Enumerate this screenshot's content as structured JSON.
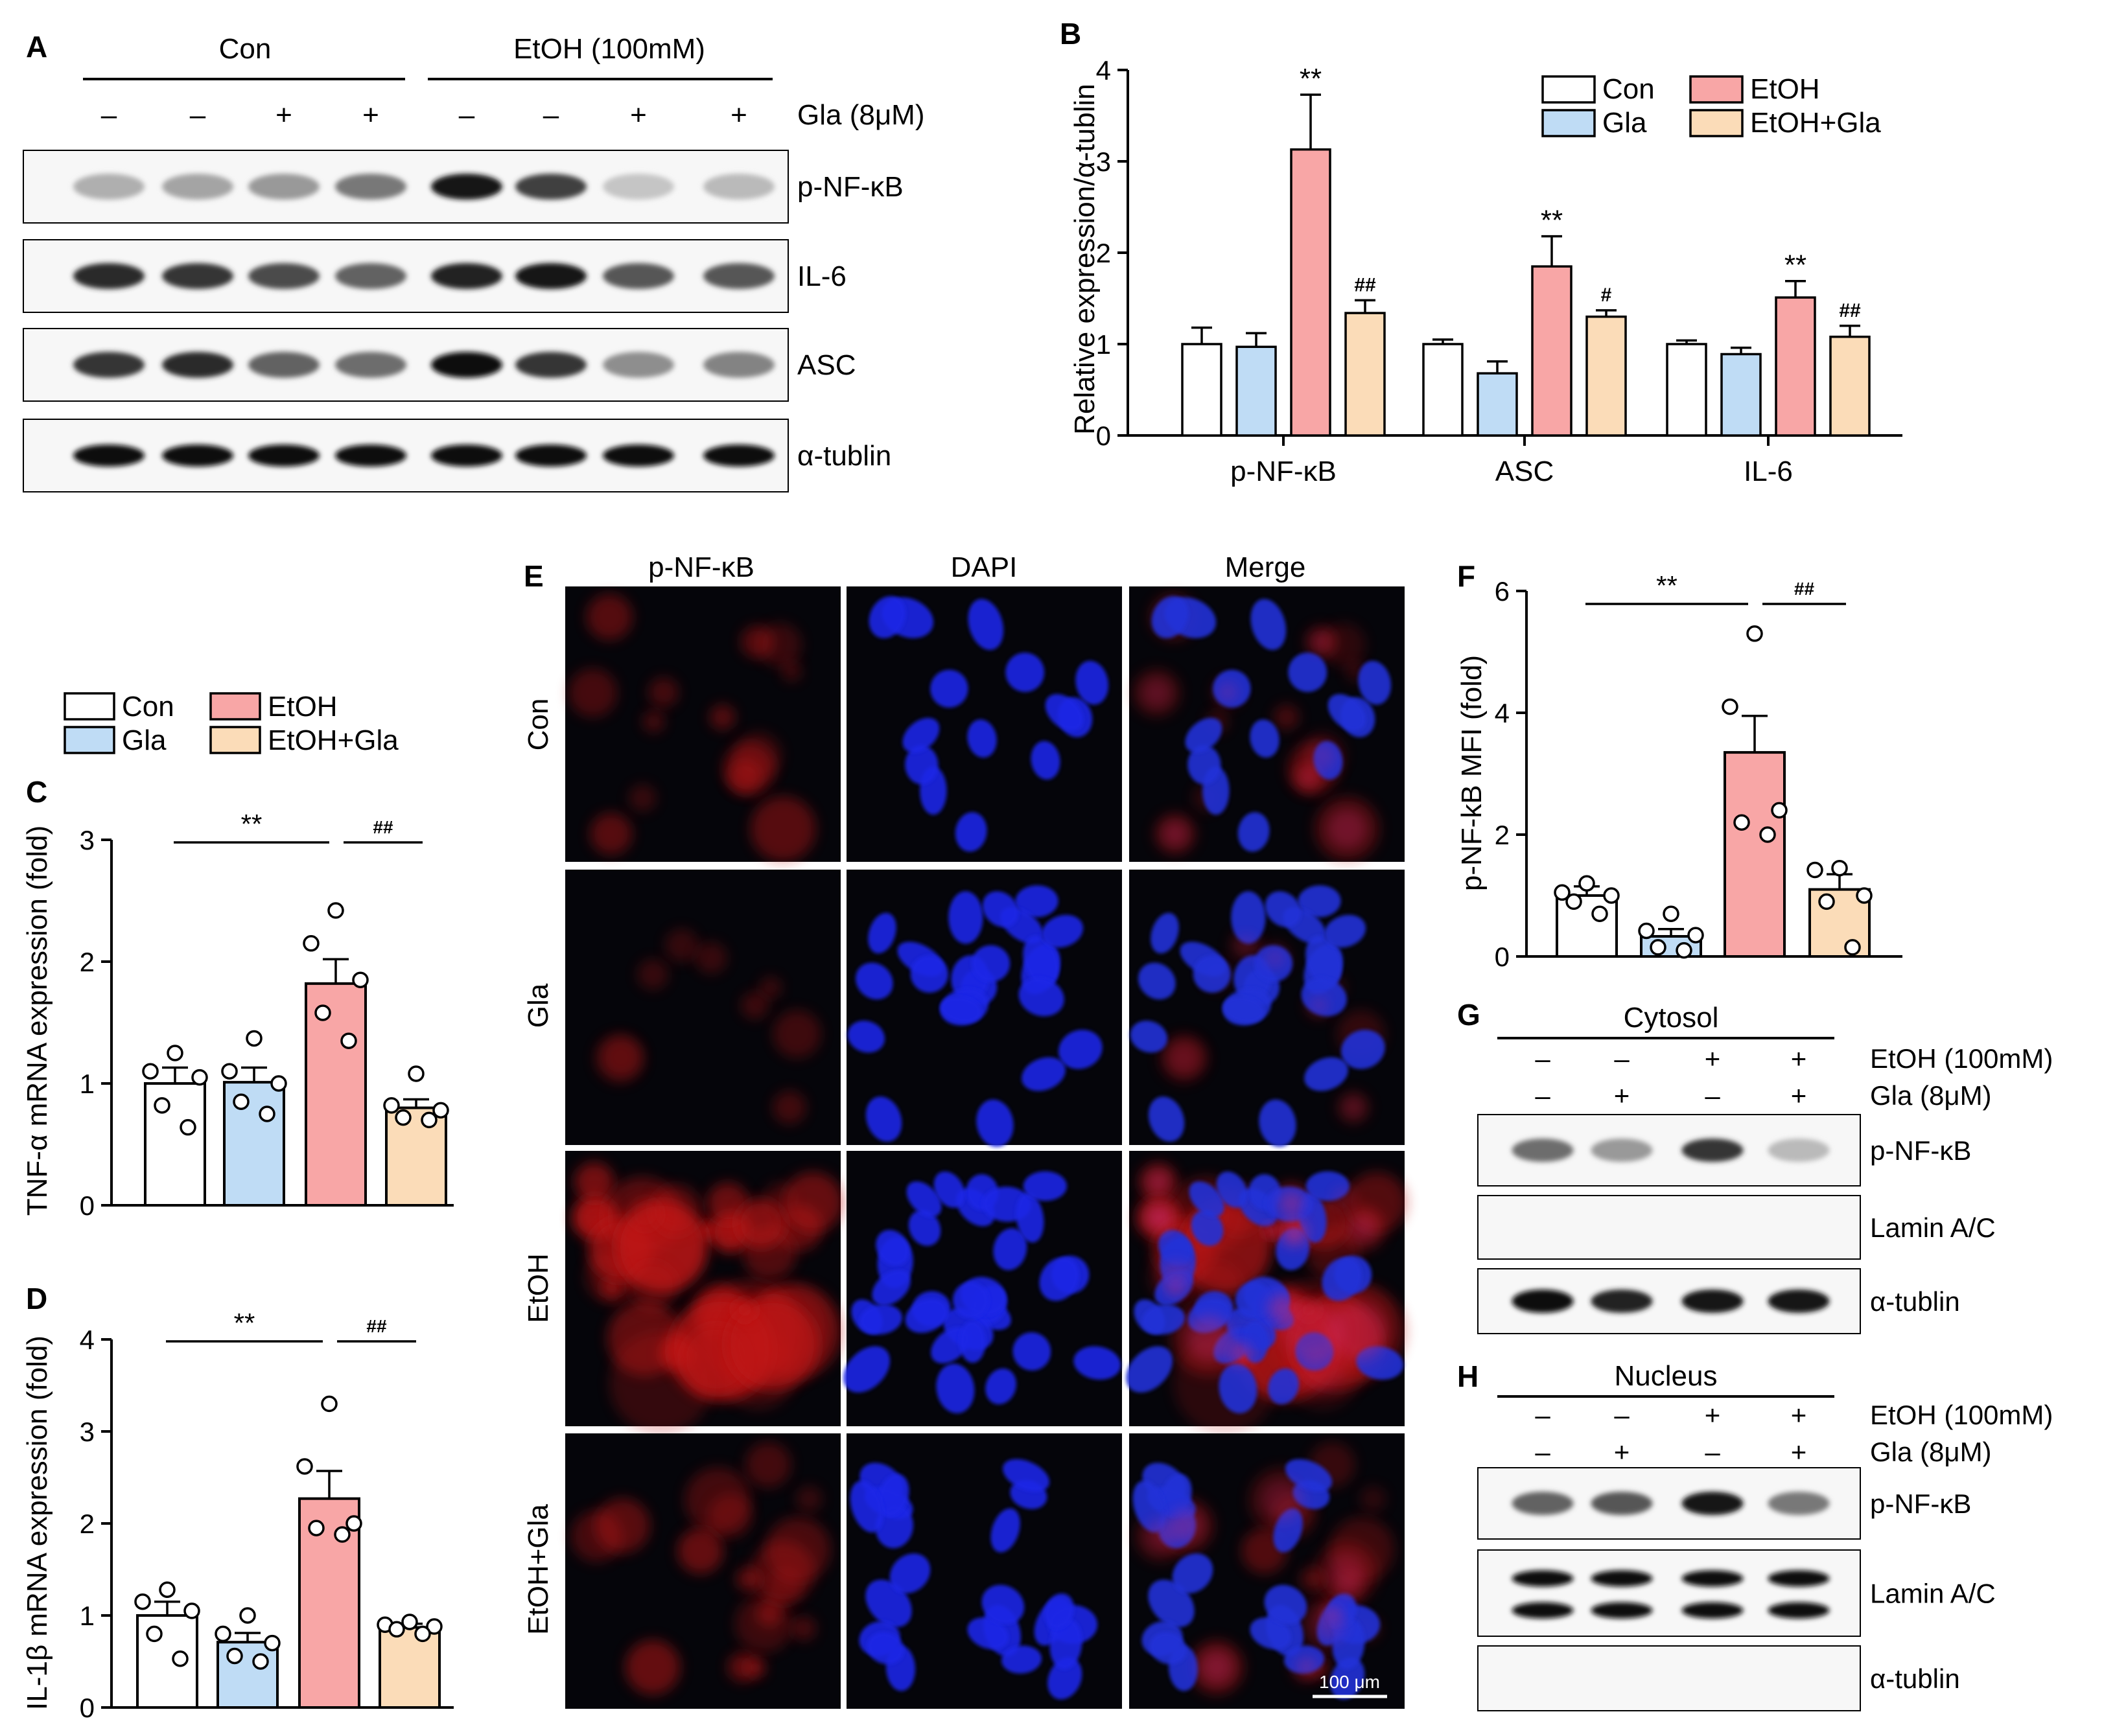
{
  "panel_letters": {
    "A": "A",
    "B": "B",
    "C": "C",
    "D": "D",
    "E": "E",
    "F": "F",
    "G": "G",
    "H": "H"
  },
  "minus": "–",
  "plus": "+",
  "asterisks": "**",
  "hash2": "##",
  "hash1": "#",
  "colors": {
    "Con": "#ffffff",
    "Gla": "#bfdcf5",
    "EtOH": "#f8a6a6",
    "EtOH+Gla": "#fbdcb8",
    "bar_edge": "#000000"
  },
  "panel_A": {
    "group_labels": [
      "Con",
      "EtOH (100mM)"
    ],
    "treatment_label": "Gla (8μM)",
    "gla_signs": [
      "–",
      "–",
      "+",
      "+",
      "–",
      "–",
      "+",
      "+"
    ],
    "blots": [
      "p-NF-κB",
      "IL-6",
      "ASC",
      "α-tublin"
    ],
    "band_intensity": {
      "p-NF-κB": [
        0.25,
        0.3,
        0.35,
        0.5,
        0.95,
        0.75,
        0.15,
        0.2
      ],
      "IL-6": [
        0.85,
        0.8,
        0.7,
        0.6,
        0.9,
        0.95,
        0.65,
        0.65
      ],
      "ASC": [
        0.8,
        0.85,
        0.6,
        0.55,
        1.0,
        0.8,
        0.4,
        0.45
      ],
      "α-tublin": [
        1,
        1,
        1,
        1,
        1,
        1,
        1,
        1
      ]
    }
  },
  "legend": {
    "labels": [
      "Con",
      "EtOH",
      "Gla",
      "EtOH+Gla"
    ]
  },
  "panel_E": {
    "columns": [
      "p-NF-κB",
      "DAPI",
      "Merge"
    ],
    "rows": [
      "Con",
      "Gla",
      "EtOH",
      "EtOH+Gla"
    ],
    "scale_bar": "100 μm"
  },
  "panel_G": {
    "title": "Cytosol",
    "etoh_label": "EtOH (100mM)",
    "gla_label": "Gla (8μM)",
    "etoh_signs": [
      "–",
      "–",
      "+",
      "+"
    ],
    "gla_signs": [
      "–",
      "+",
      "–",
      "+"
    ],
    "blots": [
      "p-NF-κB",
      "Lamin A/C",
      "α-tublin"
    ],
    "band_intensity": {
      "p-NF-κB": [
        0.55,
        0.35,
        0.8,
        0.2
      ],
      "Lamin A/C": [
        0,
        0,
        0,
        0
      ],
      "α-tublin": [
        1,
        0.9,
        0.95,
        0.95
      ]
    }
  },
  "panel_H": {
    "title": "Nucleus",
    "etoh_label": "EtOH (100mM)",
    "gla_label": "Gla (8μM)",
    "etoh_signs": [
      "–",
      "–",
      "+",
      "+"
    ],
    "gla_signs": [
      "–",
      "+",
      "–",
      "+"
    ],
    "blots": [
      "p-NF-κB",
      "Lamin A/C",
      "α-tublin"
    ],
    "band_intensity": {
      "p-NF-κB": [
        0.6,
        0.65,
        0.95,
        0.5
      ],
      "Lamin A/C": [
        1,
        1,
        1,
        1
      ],
      "α-tublin": [
        0,
        0,
        0,
        0
      ]
    }
  },
  "chart_data": [
    {
      "panel": "B",
      "type": "bar",
      "categories": [
        "p-NF-κB",
        "ASC",
        "IL-6"
      ],
      "ylabel": "Relative expression/α-tublin",
      "ylim": [
        0,
        4
      ],
      "yticks": [
        0,
        1,
        2,
        3,
        4
      ],
      "legend_position": "top-right",
      "series": [
        {
          "name": "Con",
          "values": [
            1.0,
            1.0,
            1.0
          ],
          "errors": [
            0.18,
            0.05,
            0.04
          ]
        },
        {
          "name": "Gla",
          "values": [
            0.97,
            0.68,
            0.89
          ],
          "errors": [
            0.15,
            0.13,
            0.07
          ]
        },
        {
          "name": "EtOH",
          "values": [
            3.13,
            1.85,
            1.51
          ],
          "errors": [
            0.6,
            0.33,
            0.18
          ]
        },
        {
          "name": "EtOH+Gla",
          "values": [
            1.34,
            1.3,
            1.08
          ],
          "errors": [
            0.14,
            0.07,
            0.12
          ]
        }
      ],
      "annotations": [
        {
          "category": "p-NF-κB",
          "series": "EtOH",
          "text": "**"
        },
        {
          "category": "p-NF-κB",
          "series": "EtOH+Gla",
          "text": "##"
        },
        {
          "category": "ASC",
          "series": "EtOH",
          "text": "**"
        },
        {
          "category": "ASC",
          "series": "EtOH+Gla",
          "text": "#"
        },
        {
          "category": "IL-6",
          "series": "EtOH",
          "text": "**"
        },
        {
          "category": "IL-6",
          "series": "EtOH+Gla",
          "text": "##"
        }
      ]
    },
    {
      "panel": "C",
      "type": "bar",
      "categories": [
        "Con",
        "Gla",
        "EtOH",
        "EtOH+Gla"
      ],
      "ylabel": "TNF-α mRNA expression (fold)",
      "ylim": [
        0,
        3
      ],
      "yticks": [
        0,
        1,
        2,
        3
      ],
      "values": [
        1.0,
        1.01,
        1.82,
        0.8
      ],
      "errors": [
        0.13,
        0.12,
        0.2,
        0.07
      ],
      "points": [
        [
          1.25,
          1.1,
          1.05,
          0.82,
          0.64
        ],
        [
          1.37,
          1.1,
          1.0,
          0.85,
          0.75
        ],
        [
          2.42,
          2.15,
          1.85,
          1.58,
          1.35
        ],
        [
          1.08,
          0.82,
          0.78,
          0.72,
          0.7
        ]
      ],
      "brackets": [
        {
          "from": 0,
          "to": 2,
          "text": "**"
        },
        {
          "from": 2,
          "to": 3,
          "text": "##"
        }
      ]
    },
    {
      "panel": "D",
      "type": "bar",
      "categories": [
        "Con",
        "Gla",
        "EtOH",
        "EtOH+Gla"
      ],
      "ylabel": "IL-1β mRNA expression (fold)",
      "ylim": [
        0,
        4
      ],
      "yticks": [
        0,
        1,
        2,
        3,
        4
      ],
      "values": [
        1.0,
        0.71,
        2.27,
        0.87
      ],
      "errors": [
        0.15,
        0.1,
        0.3,
        0.04
      ],
      "points": [
        [
          1.28,
          1.15,
          1.05,
          0.8,
          0.53
        ],
        [
          1.0,
          0.8,
          0.7,
          0.56,
          0.5
        ],
        [
          3.3,
          2.62,
          2.0,
          1.95,
          1.88
        ],
        [
          0.93,
          0.9,
          0.88,
          0.85,
          0.8
        ]
      ],
      "brackets": [
        {
          "from": 0,
          "to": 2,
          "text": "**"
        },
        {
          "from": 2,
          "to": 3,
          "text": "##"
        }
      ]
    },
    {
      "panel": "F",
      "type": "bar",
      "categories": [
        "Con",
        "Gla",
        "EtOH",
        "EtOH+Gla"
      ],
      "ylabel": "p-NF-kB MFI (fold)",
      "ylim": [
        0,
        6
      ],
      "yticks": [
        0,
        2,
        4,
        6
      ],
      "values": [
        1.0,
        0.33,
        3.35,
        1.1
      ],
      "errors": [
        0.15,
        0.12,
        0.6,
        0.25
      ],
      "points": [
        [
          1.2,
          1.05,
          1.0,
          0.9,
          0.7
        ],
        [
          0.7,
          0.42,
          0.35,
          0.15,
          0.1
        ],
        [
          5.3,
          4.1,
          2.4,
          2.2,
          2.0
        ],
        [
          1.45,
          1.42,
          1.0,
          0.9,
          0.15
        ]
      ],
      "brackets": [
        {
          "from": 0,
          "to": 2,
          "text": "**"
        },
        {
          "from": 2,
          "to": 3,
          "text": "##"
        }
      ]
    }
  ]
}
